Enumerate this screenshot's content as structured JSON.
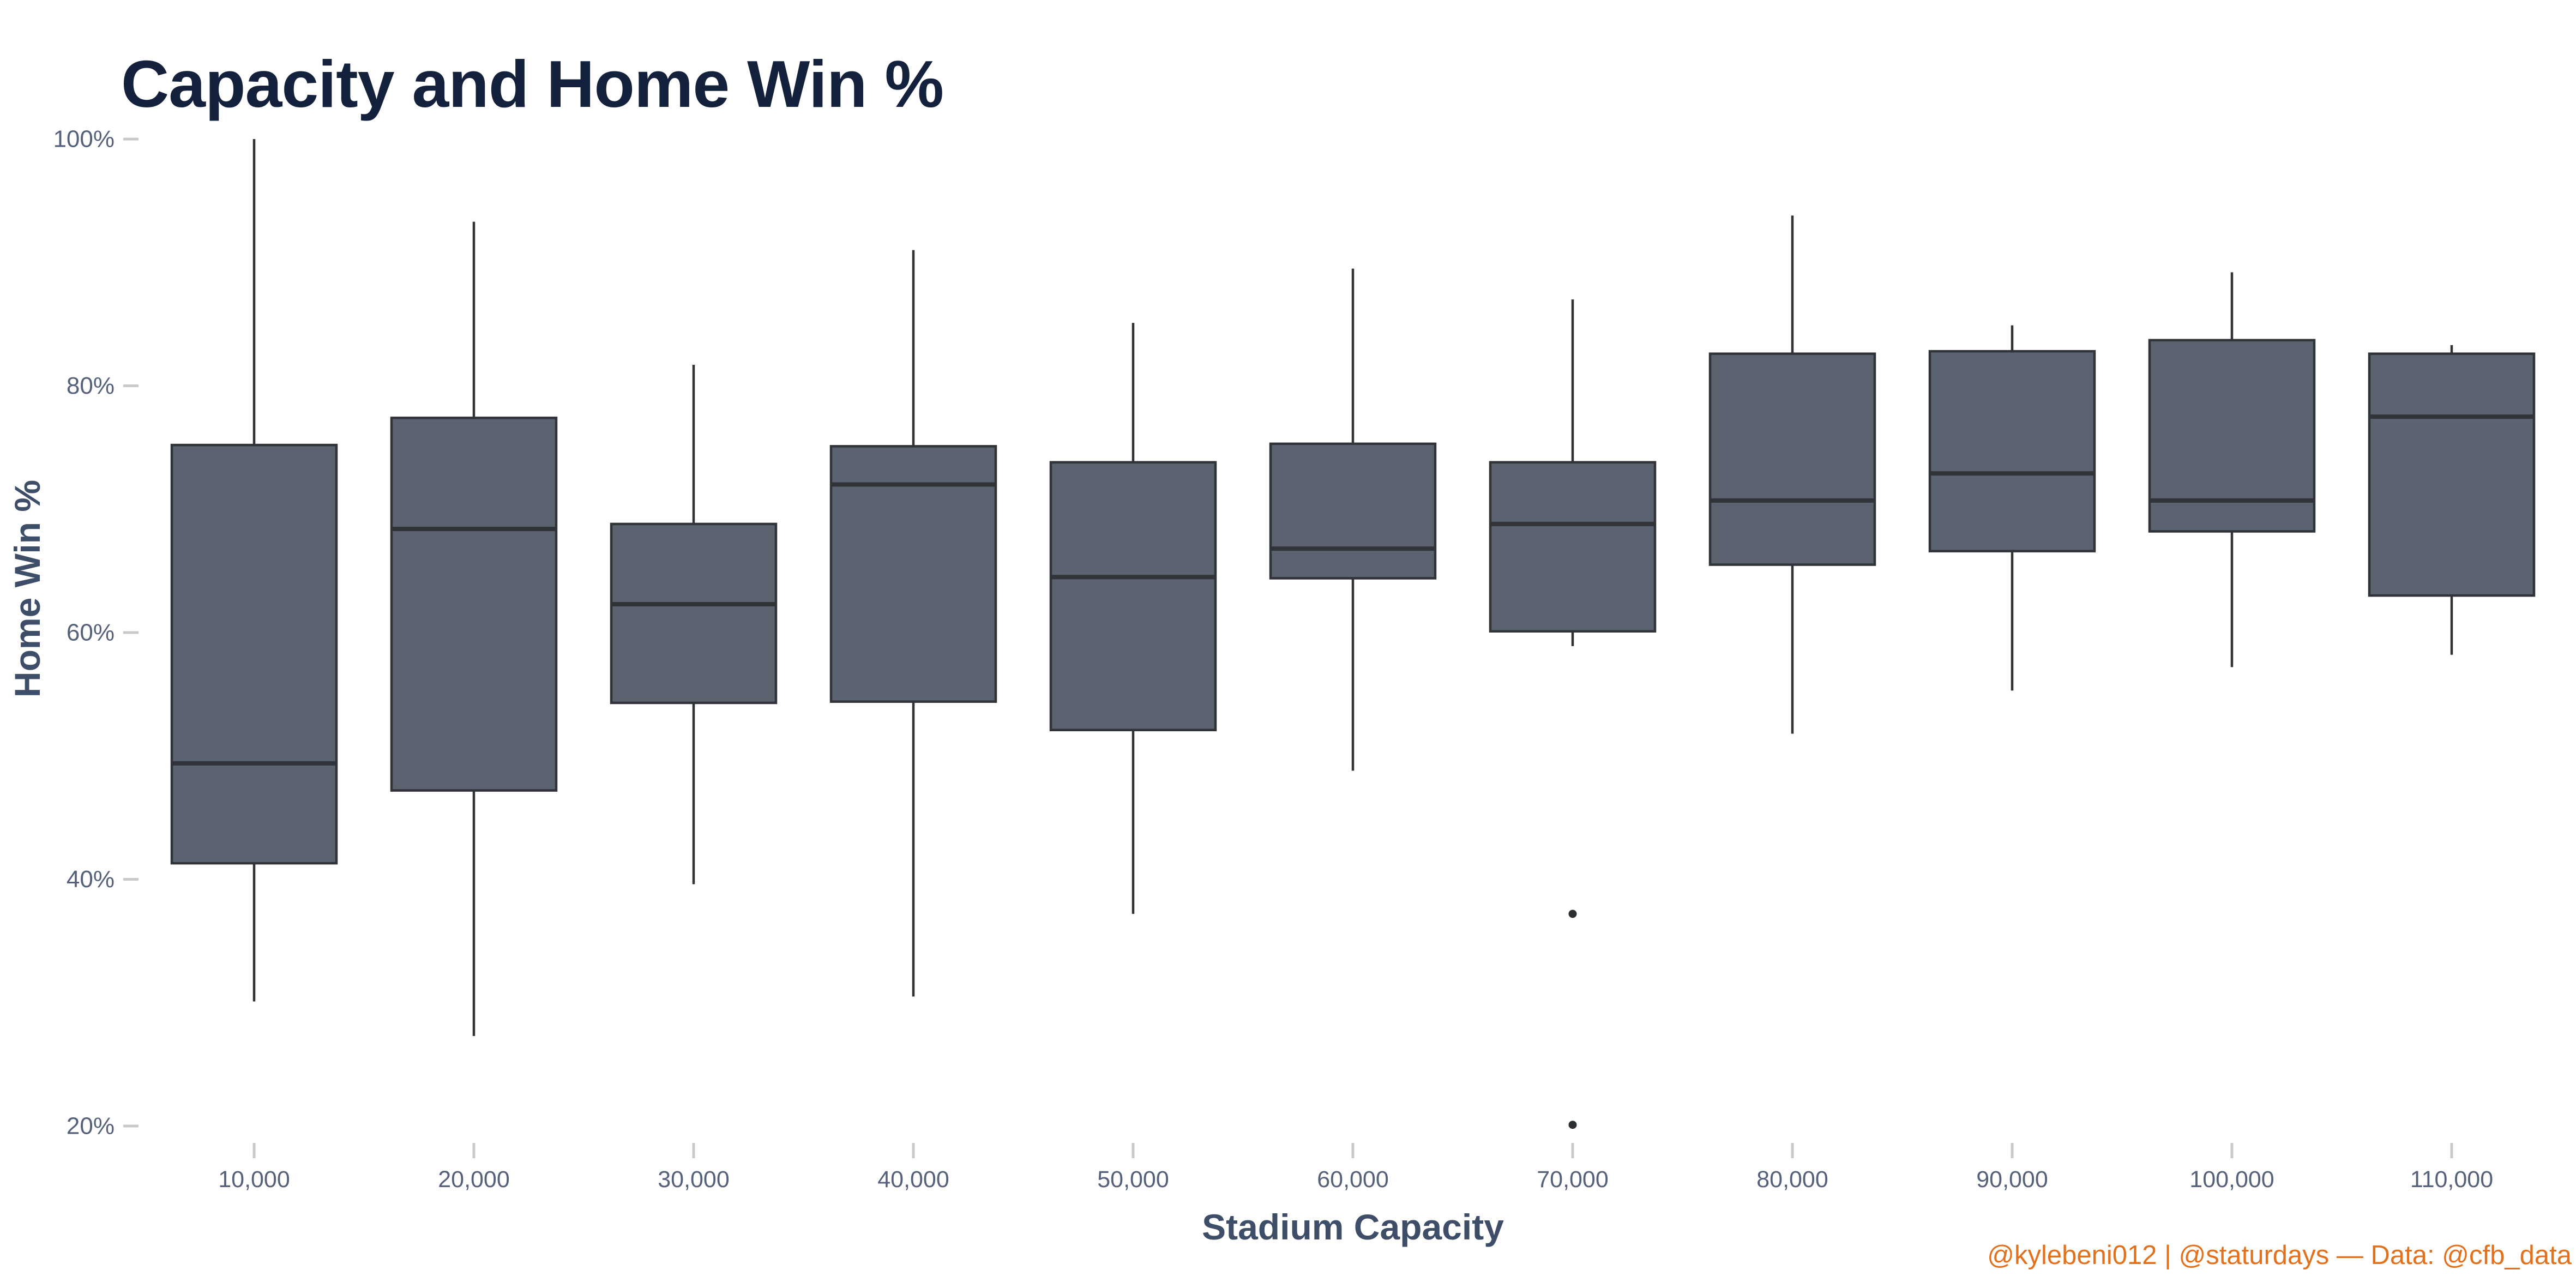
{
  "title": "Capacity and Home Win %",
  "attribution": "@kylebeni012 | @staturdays — Data: @cfb_data",
  "colors": {
    "background": "#ffffff",
    "title": "#14213d",
    "axis_text": "#55607a",
    "axis_title": "#3e4e68",
    "box_fill": "#5c6370",
    "box_border": "#303338",
    "whisker": "#303338",
    "outlier": "#2b2f34",
    "tick_mark": "#c9c9c9",
    "attribution": "#e2711d"
  },
  "chart_data": {
    "type": "boxplot",
    "title": "Capacity and Home Win %",
    "xlabel": "Stadium Capacity",
    "ylabel": "Home Win %",
    "grid": false,
    "legend": null,
    "ylim": [
      14,
      104
    ],
    "y_unit": "%",
    "y_ticks": [
      {
        "value": 100,
        "label": "100%"
      },
      {
        "value": 80,
        "label": "80%"
      },
      {
        "value": 60,
        "label": "60%"
      },
      {
        "value": 40,
        "label": "40%"
      },
      {
        "value": 20,
        "label": "20%"
      }
    ],
    "categories": [
      "10,000",
      "20,000",
      "30,000",
      "40,000",
      "50,000",
      "60,000",
      "70,000",
      "80,000",
      "90,000",
      "100,000",
      "110,000"
    ],
    "boxes": [
      {
        "category": "10,000",
        "whisker_low": 30.1,
        "q1": 41.3,
        "median": 49.4,
        "q3": 75.2,
        "whisker_high": 100.0,
        "outliers": []
      },
      {
        "category": "20,000",
        "whisker_low": 27.3,
        "q1": 47.2,
        "median": 68.4,
        "q3": 77.4,
        "whisker_high": 93.3,
        "outliers": []
      },
      {
        "category": "30,000",
        "whisker_low": 39.6,
        "q1": 54.3,
        "median": 62.3,
        "q3": 68.8,
        "whisker_high": 81.7,
        "outliers": []
      },
      {
        "category": "40,000",
        "whisker_low": 30.5,
        "q1": 54.4,
        "median": 72.0,
        "q3": 75.1,
        "whisker_high": 91.0,
        "outliers": []
      },
      {
        "category": "50,000",
        "whisker_low": 37.2,
        "q1": 52.1,
        "median": 64.5,
        "q3": 73.8,
        "whisker_high": 85.1,
        "outliers": []
      },
      {
        "category": "60,000",
        "whisker_low": 48.8,
        "q1": 64.4,
        "median": 66.8,
        "q3": 75.3,
        "whisker_high": 89.5,
        "outliers": []
      },
      {
        "category": "70,000",
        "whisker_low": 58.9,
        "q1": 60.1,
        "median": 68.8,
        "q3": 73.8,
        "whisker_high": 87.0,
        "outliers": [
          37.2,
          20.1
        ]
      },
      {
        "category": "80,000",
        "whisker_low": 51.8,
        "q1": 65.5,
        "median": 70.7,
        "q3": 82.6,
        "whisker_high": 93.8,
        "outliers": []
      },
      {
        "category": "90,000",
        "whisker_low": 55.3,
        "q1": 66.6,
        "median": 72.9,
        "q3": 82.8,
        "whisker_high": 84.9,
        "outliers": []
      },
      {
        "category": "100,000",
        "whisker_low": 57.2,
        "q1": 68.2,
        "median": 70.7,
        "q3": 83.7,
        "whisker_high": 89.2,
        "outliers": []
      },
      {
        "category": "110,000",
        "whisker_low": 58.2,
        "q1": 63.0,
        "median": 77.5,
        "q3": 82.6,
        "whisker_high": 83.3,
        "outliers": []
      }
    ]
  }
}
